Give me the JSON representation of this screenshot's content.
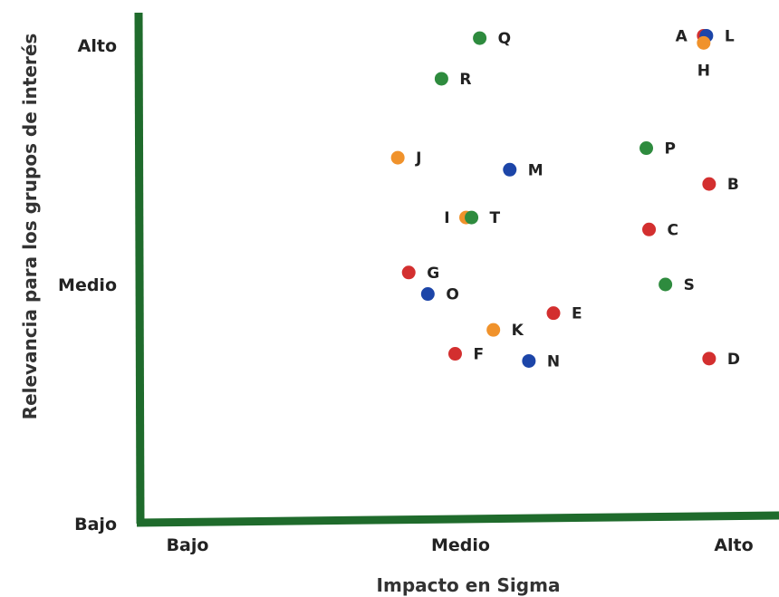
{
  "chart_data": {
    "type": "scatter",
    "xlabel": "Impacto en Sigma",
    "ylabel": "Relevancia para los grupos de interés",
    "xlim": [
      0,
      2
    ],
    "ylim": [
      0,
      2
    ],
    "x_ticks": [
      {
        "value": 0,
        "label": "Bajo"
      },
      {
        "value": 1,
        "label": "Medio"
      },
      {
        "value": 2,
        "label": "Alto"
      }
    ],
    "y_ticks": [
      {
        "value": 0,
        "label": "Bajo"
      },
      {
        "value": 1,
        "label": "Medio"
      },
      {
        "value": 2,
        "label": "Alto"
      }
    ],
    "grid": false,
    "legend": "none",
    "colors": {
      "axis": "#1f6b2c",
      "red": "#d32f2f",
      "orange": "#f0922b",
      "green": "#2e8b3e",
      "blue": "#1c45a8"
    },
    "points": [
      {
        "label": "A",
        "x": 1.89,
        "y": 2.04,
        "color": "red",
        "label_pos": "left"
      },
      {
        "label": "L",
        "x": 1.9,
        "y": 2.04,
        "color": "blue",
        "label_pos": "right"
      },
      {
        "label": "H",
        "x": 1.89,
        "y": 2.01,
        "color": "orange",
        "label_pos": "below"
      },
      {
        "label": "Q",
        "x": 1.07,
        "y": 2.03,
        "color": "green",
        "label_pos": "right"
      },
      {
        "label": "R",
        "x": 0.93,
        "y": 1.86,
        "color": "green",
        "label_pos": "right"
      },
      {
        "label": "J",
        "x": 0.77,
        "y": 1.53,
        "color": "orange",
        "label_pos": "right"
      },
      {
        "label": "M",
        "x": 1.18,
        "y": 1.48,
        "color": "blue",
        "label_pos": "right"
      },
      {
        "label": "P",
        "x": 1.68,
        "y": 1.57,
        "color": "green",
        "label_pos": "right"
      },
      {
        "label": "B",
        "x": 1.91,
        "y": 1.42,
        "color": "red",
        "label_pos": "right"
      },
      {
        "label": "I",
        "x": 1.02,
        "y": 1.28,
        "color": "orange",
        "label_pos": "left"
      },
      {
        "label": "T",
        "x": 1.04,
        "y": 1.28,
        "color": "green",
        "label_pos": "right"
      },
      {
        "label": "C",
        "x": 1.69,
        "y": 1.23,
        "color": "red",
        "label_pos": "right"
      },
      {
        "label": "G",
        "x": 0.81,
        "y": 1.05,
        "color": "red",
        "label_pos": "right"
      },
      {
        "label": "O",
        "x": 0.88,
        "y": 0.96,
        "color": "blue",
        "label_pos": "right"
      },
      {
        "label": "S",
        "x": 1.75,
        "y": 1.0,
        "color": "green",
        "label_pos": "right"
      },
      {
        "label": "E",
        "x": 1.34,
        "y": 0.88,
        "color": "red",
        "label_pos": "right"
      },
      {
        "label": "K",
        "x": 1.12,
        "y": 0.81,
        "color": "orange",
        "label_pos": "right"
      },
      {
        "label": "F",
        "x": 0.98,
        "y": 0.71,
        "color": "red",
        "label_pos": "right"
      },
      {
        "label": "N",
        "x": 1.25,
        "y": 0.68,
        "color": "blue",
        "label_pos": "right"
      },
      {
        "label": "D",
        "x": 1.91,
        "y": 0.69,
        "color": "red",
        "label_pos": "right"
      }
    ]
  }
}
